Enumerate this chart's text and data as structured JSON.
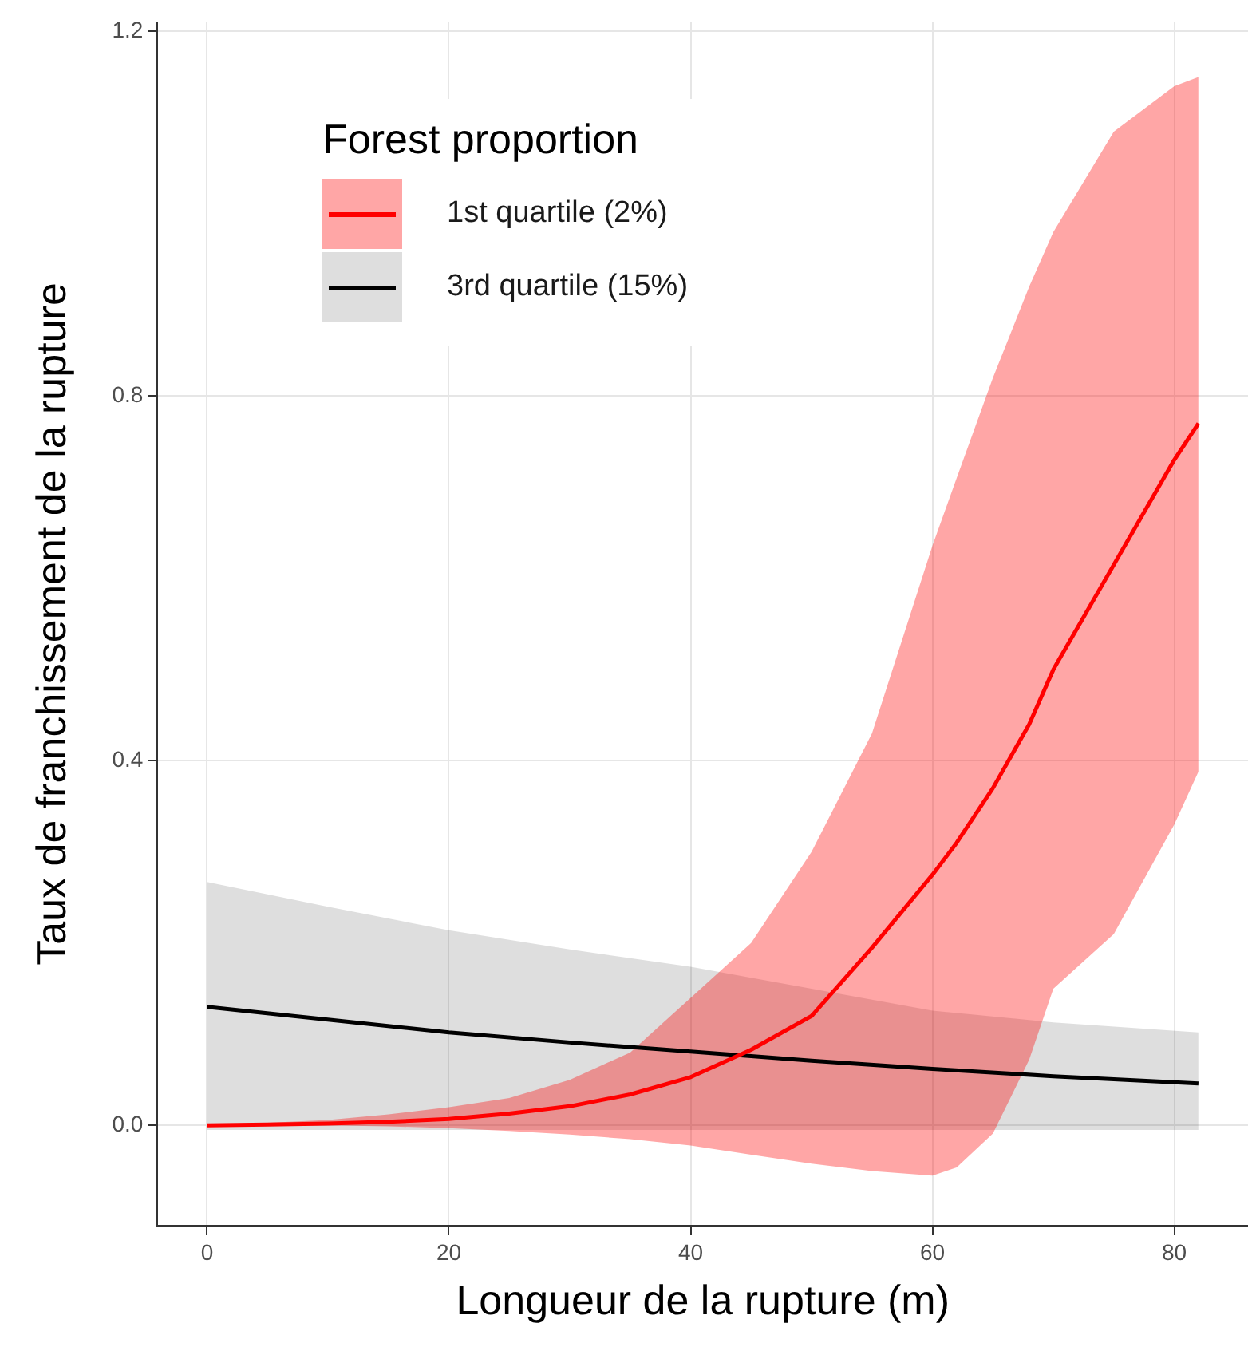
{
  "chart_data": {
    "type": "line",
    "xlabel": "Longueur de la rupture (m)",
    "ylabel": "Taux de franchissement de la rupture",
    "legend_title": "Forest proportion",
    "xlim": [
      -4.1,
      86.1
    ],
    "xticks": [
      0,
      20,
      40,
      60,
      80
    ],
    "ylim": [
      -0.11,
      1.21
    ],
    "yticks": [
      {
        "value": 0,
        "label": "0.0"
      },
      {
        "value": 0.4,
        "label": "0.4"
      },
      {
        "value": 0.8,
        "label": "0.8"
      },
      {
        "value": 1.2,
        "label": "1.2"
      }
    ],
    "grid": true,
    "legend": "top left",
    "marker": "none",
    "line_style": "solid",
    "series": [
      {
        "name": "1st quartile (2%)",
        "color": "#ff0000",
        "x": [
          0,
          5,
          10,
          15,
          20,
          25,
          30,
          35,
          40,
          45,
          50,
          55,
          60,
          62,
          65,
          68,
          70,
          75,
          80,
          82
        ],
        "values": [
          0,
          0.001,
          0.002,
          0.004,
          0.007,
          0.013,
          0.021,
          0.034,
          0.053,
          0.083,
          0.12,
          0.195,
          0.275,
          0.31,
          0.37,
          0.44,
          0.5,
          0.615,
          0.73,
          0.77
        ],
        "lower": [
          0,
          0,
          0,
          -0.001,
          -0.003,
          -0.006,
          -0.01,
          -0.015,
          -0.022,
          -0.032,
          -0.042,
          -0.05,
          -0.055,
          -0.046,
          -0.009,
          0.072,
          0.15,
          0.21,
          0.33,
          0.388
        ],
        "upper": [
          0.001,
          0.003,
          0.006,
          0.012,
          0.02,
          0.03,
          0.05,
          0.08,
          0.14,
          0.2,
          0.3,
          0.43,
          0.636,
          0.71,
          0.82,
          0.92,
          0.98,
          1.09,
          1.14,
          1.15
        ]
      },
      {
        "name": "3rd quartile (15%)",
        "color": "#000000",
        "x": [
          0,
          10,
          20,
          30,
          40,
          50,
          60,
          70,
          82
        ],
        "values": [
          0.13,
          0.116,
          0.102,
          0.091,
          0.081,
          0.071,
          0.062,
          0.054,
          0.046
        ],
        "lower": [
          -0.005,
          -0.005,
          -0.005,
          -0.005,
          -0.005,
          -0.005,
          -0.005,
          -0.005,
          -0.005
        ],
        "upper": [
          0.267,
          0.24,
          0.214,
          0.193,
          0.174,
          0.15,
          0.126,
          0.113,
          0.102
        ]
      }
    ]
  }
}
